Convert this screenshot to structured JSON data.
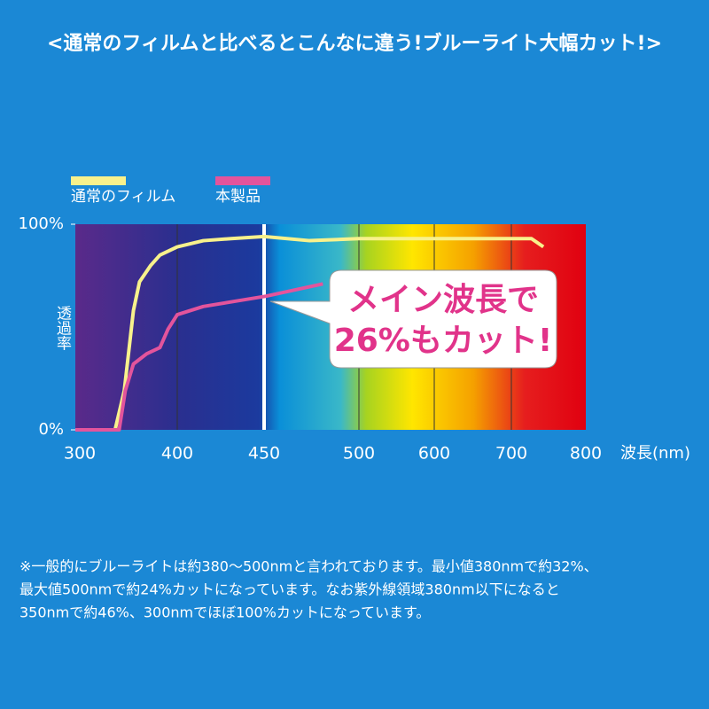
{
  "chart_data": {
    "type": "line",
    "title": "<通常のフィルムと比べるとこんなに違う!ブルーライト大幅カット!>",
    "ylabel": "透過率",
    "xlabel": "波長(nm)",
    "xlim": [
      300,
      800
    ],
    "xticks": [
      300,
      400,
      450,
      500,
      600,
      700,
      800
    ],
    "ylim": [
      0,
      100
    ],
    "yticks": [
      {
        "value": 0,
        "label": "0%"
      },
      {
        "value": 100,
        "label": "100%"
      }
    ],
    "series": [
      {
        "name": "通常のフィルム",
        "color": "#f8f18c",
        "x": [
          300,
          339,
          348,
          357,
          363,
          374,
          383,
          400,
          415,
          431,
          450,
          474,
          500,
          553,
          600,
          669,
          727,
          743
        ],
        "values": [
          0,
          0,
          19,
          58,
          72,
          80,
          85,
          89,
          92,
          93,
          94,
          92,
          93,
          93,
          93,
          93,
          93,
          89
        ]
      },
      {
        "name": "本製品",
        "color": "#e3549c",
        "x": [
          300,
          343,
          349,
          357,
          370,
          383,
          391,
          400,
          415,
          451,
          481
        ],
        "values": [
          0,
          0,
          19,
          32,
          37,
          40,
          49,
          56,
          60,
          65,
          71
        ]
      }
    ],
    "annotation": [
      "メイン波長で",
      "26%もカット!"
    ],
    "notes": [
      "※一般的にブルーライトは約380〜500nmと言われております。最小値380nmで約32%、",
      "最大値500nmで約24%カットになっています。なお紫外線領域380nm以下になると",
      "350nmで約46%、300nmでほぼ100%カットになっています。"
    ]
  }
}
